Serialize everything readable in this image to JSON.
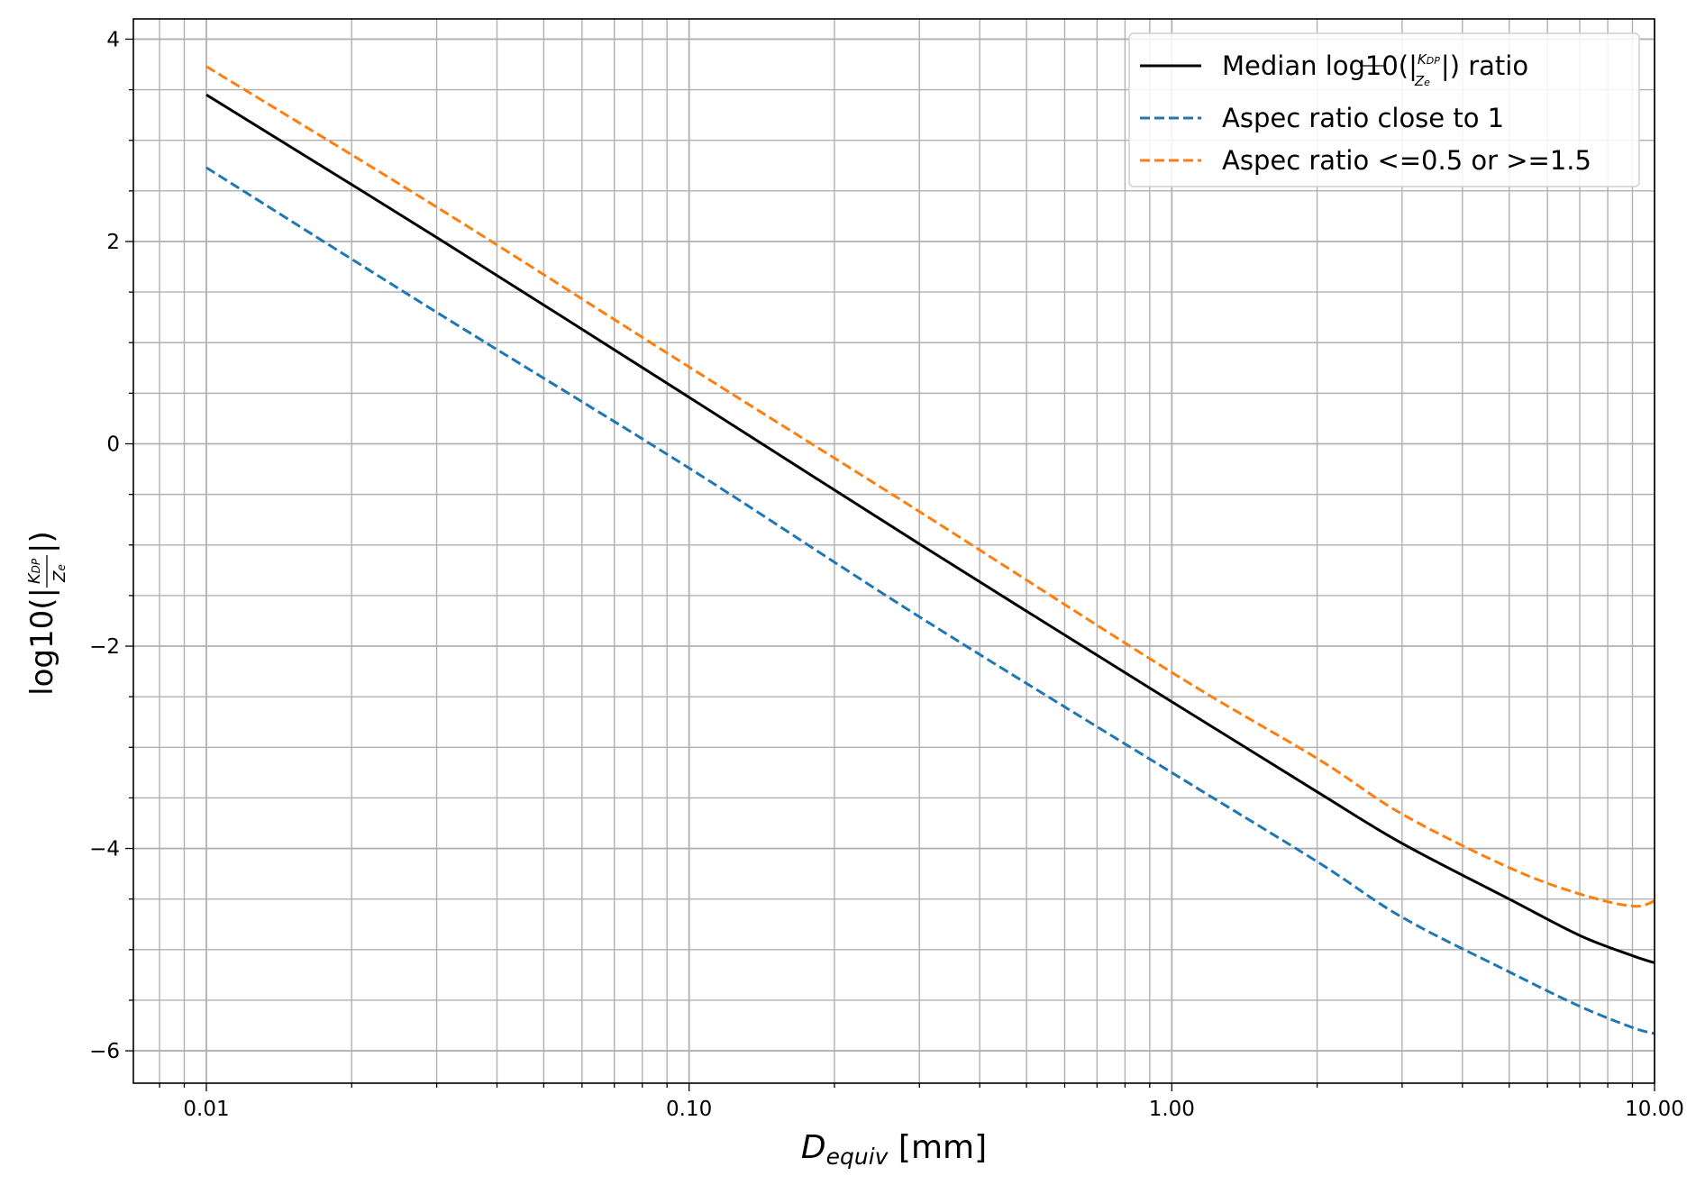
{
  "chart_data": {
    "type": "line",
    "title": "",
    "xlabel": "D_equiv [mm]",
    "xlabel_main": "D",
    "xlabel_sub": "equiv",
    "xlabel_unit": " [mm]",
    "ylabel": "log10(|K_DP / Z_e|)",
    "xscale": "log",
    "xlim": [
      0.00706,
      10
    ],
    "ylim": [
      -6.32,
      4.2
    ],
    "grid": true,
    "x_ticks": [
      0.01,
      0.1,
      1,
      10
    ],
    "x_tick_labels": [
      "0.01",
      "0.10",
      "1.00",
      "10.00"
    ],
    "y_ticks": [
      4,
      2,
      0,
      -2,
      -4,
      -6
    ],
    "y_tick_labels": [
      "4",
      "2",
      "0",
      "−2",
      "−4",
      "−6"
    ],
    "legend_position": "top-right",
    "x": [
      0.01,
      0.03,
      0.1,
      0.3,
      1,
      2,
      3,
      5,
      7,
      9,
      10
    ],
    "series": [
      {
        "name": "Median log10(|K_DP/Z_e|) ratio",
        "legend_label": "Median log10(|KDP/Ze|) ratio",
        "color": "#000000",
        "style": "solid",
        "values": [
          3.45,
          2.04,
          0.46,
          -0.99,
          -2.55,
          -3.44,
          -3.95,
          -4.5,
          -4.86,
          -5.06,
          -5.13
        ]
      },
      {
        "name": "Aspec ratio close to 1",
        "legend_label": "Aspec ratio close to 1",
        "color": "#1f77b4",
        "style": "dashed",
        "values": [
          2.73,
          1.3,
          -0.24,
          -1.71,
          -3.25,
          -4.13,
          -4.68,
          -5.22,
          -5.56,
          -5.77,
          -5.83
        ]
      },
      {
        "name": "Aspec ratio <=0.5 or >=1.5",
        "legend_label": "Aspec ratio <=0.5 or >=1.5",
        "color": "#ff7f0e",
        "style": "dashed",
        "values": [
          3.73,
          2.34,
          0.76,
          -0.67,
          -2.26,
          -3.11,
          -3.66,
          -4.19,
          -4.45,
          -4.57,
          -4.52
        ]
      }
    ]
  }
}
